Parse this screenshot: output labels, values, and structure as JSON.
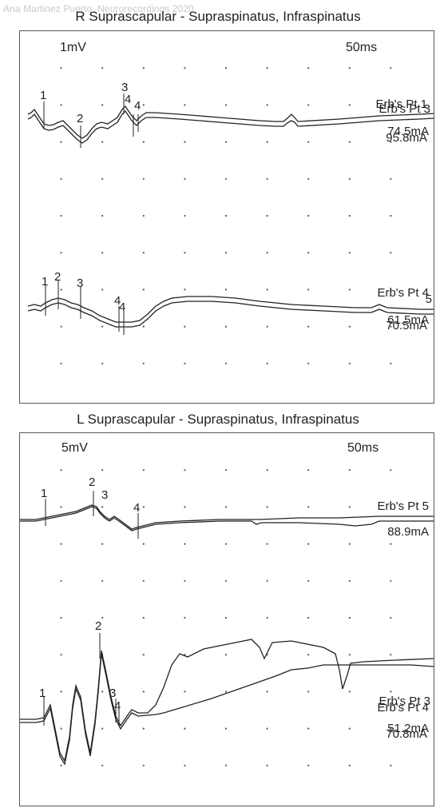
{
  "watermark": "Ana Martinez Puerto. Neurorecordings 2020",
  "chart_data": [
    {
      "type": "line",
      "title": "R Suprascapular - Supraspinatus, Infraspinatus",
      "gain_label": "1mV",
      "sweep_label": "50ms",
      "grid": true,
      "traces": [
        {
          "site_labels": [
            "Erb's Pt 1",
            "Erb's Pt 3"
          ],
          "stim_labels": [
            "74.5mA",
            "95.8mA"
          ],
          "marker_labels": [
            "1",
            "2",
            "3",
            "4",
            "4"
          ]
        },
        {
          "site_labels": [
            "Erb's Pt 4",
            "5"
          ],
          "stim_labels": [
            "61.5mA",
            "70.5mA"
          ],
          "marker_labels": [
            "1",
            "2",
            "3",
            "4",
            "4"
          ]
        }
      ]
    },
    {
      "type": "line",
      "title": "L Suprascapular - Supraspinatus, Infraspinatus",
      "gain_label": "5mV",
      "sweep_label": "50ms",
      "grid": true,
      "traces": [
        {
          "site_labels": [
            "Erb's Pt 5"
          ],
          "stim_labels": [
            "88.9mA"
          ],
          "marker_labels": [
            "1",
            "2",
            "3",
            "4"
          ]
        },
        {
          "site_labels": [
            "Erb's Pt 3",
            "Erb's Pt 4"
          ],
          "stim_labels": [
            "51.2mA",
            "70.8mA"
          ],
          "marker_labels": [
            "1",
            "2",
            "3",
            "4"
          ]
        }
      ]
    }
  ]
}
